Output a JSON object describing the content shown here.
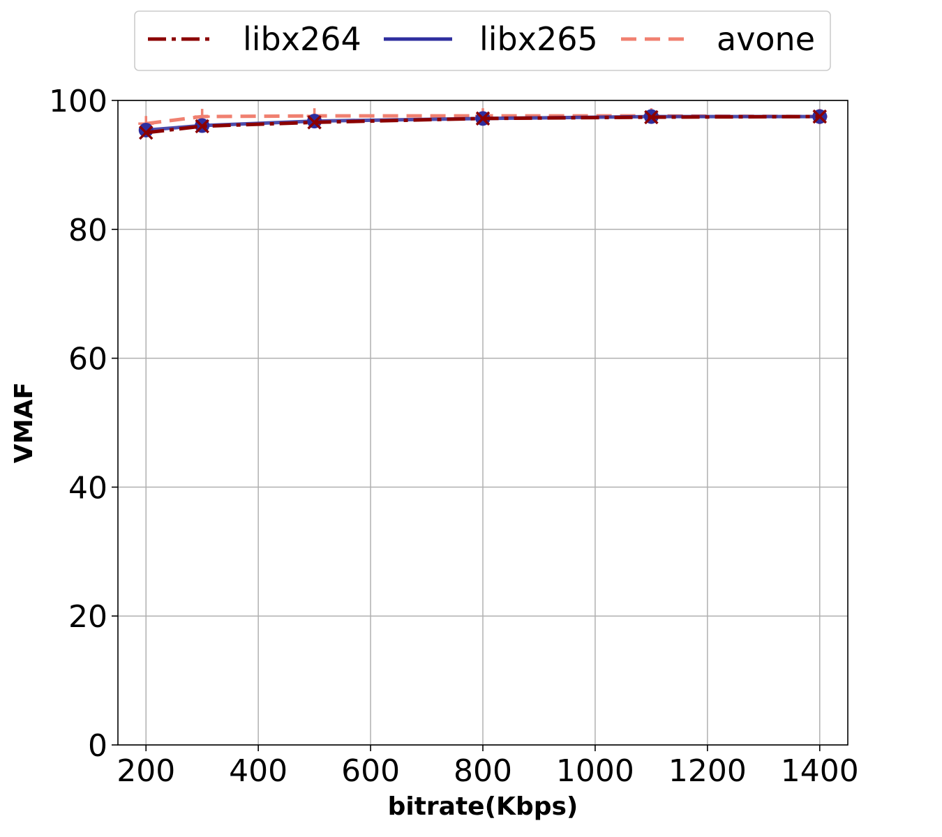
{
  "chart_data": {
    "type": "line",
    "title": "",
    "xlabel": "bitrate(Kbps)",
    "ylabel": "VMAF",
    "xlim": [
      150,
      1450
    ],
    "ylim": [
      0,
      100
    ],
    "xticks": [
      200,
      400,
      600,
      800,
      1000,
      1200,
      1400
    ],
    "yticks": [
      0,
      20,
      40,
      60,
      80,
      100
    ],
    "grid": true,
    "legend_position": "top-center",
    "x": [
      200,
      300,
      500,
      800,
      1100,
      1400
    ],
    "series": [
      {
        "name": "libx264",
        "color": "#8b0000",
        "line_style": "dash-dot",
        "marker": "x",
        "values": [
          95.0,
          96.0,
          96.6,
          97.2,
          97.4,
          97.5
        ]
      },
      {
        "name": "libx265",
        "color": "#2e2e9e",
        "line_style": "solid",
        "marker": "circle",
        "values": [
          95.4,
          96.1,
          96.8,
          97.2,
          97.5,
          97.5
        ]
      },
      {
        "name": "avone",
        "color": "#f08070",
        "line_style": "dashed",
        "marker": "plus",
        "values": [
          96.4,
          97.5,
          97.6,
          97.6,
          97.6,
          97.5
        ]
      }
    ]
  }
}
